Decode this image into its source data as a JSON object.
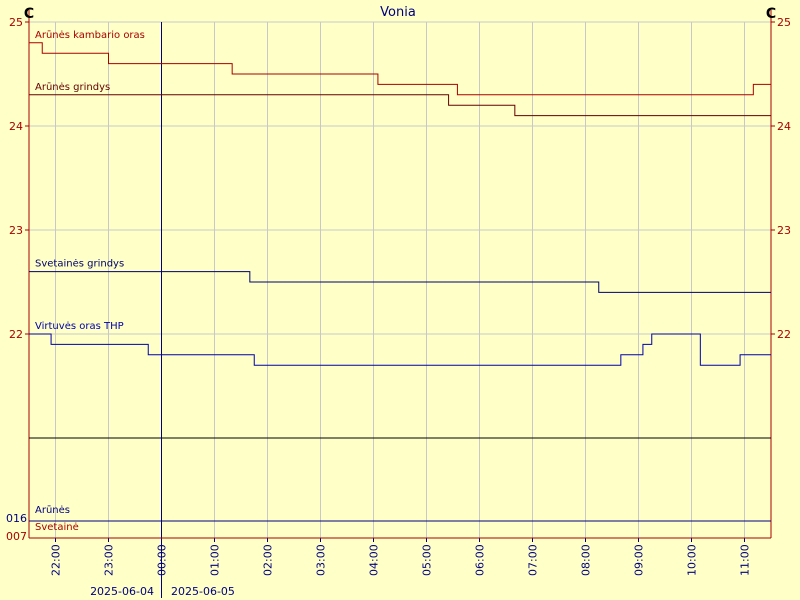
{
  "chart_data": {
    "type": "line",
    "title": "Vonia",
    "unit_left": "C",
    "unit_right": "C",
    "x_axis": {
      "tick_labels": [
        "22:00",
        "23:00",
        "00:00",
        "01:00",
        "02:00",
        "03:00",
        "04:00",
        "05:00",
        "06:00",
        "07:00",
        "08:00",
        "09:00",
        "10:00",
        "11:00"
      ],
      "xlim": [
        "2025-06-04 21:30",
        "2025-06-05 11:30"
      ],
      "day_change": "2025-06-05 00:00",
      "date_left": "2025-06-04",
      "date_right": "2025-06-05"
    },
    "y_axis": {
      "ylim": [
        21,
        25
      ],
      "ticks": [
        "25",
        "24",
        "23",
        "22"
      ]
    },
    "grid": true,
    "series": [
      {
        "name": "Arūnės kambario oras",
        "color": "#aa0000",
        "points": [
          [
            "21:30",
            24.8
          ],
          [
            "21:45",
            24.7
          ],
          [
            "23:00",
            24.6
          ],
          [
            "01:20",
            24.5
          ],
          [
            "04:05",
            24.4
          ],
          [
            "05:35",
            24.3
          ],
          [
            "11:10",
            24.4
          ]
        ]
      },
      {
        "name": "Arūnės grindys",
        "color": "#660000",
        "points": [
          [
            "21:30",
            24.3
          ],
          [
            "03:45",
            24.3
          ],
          [
            "05:25",
            24.2
          ],
          [
            "06:40",
            24.1
          ],
          [
            "11:30",
            24.1
          ]
        ]
      },
      {
        "name": "Svetainės grindys",
        "color": "#00006e",
        "points": [
          [
            "21:30",
            22.6
          ],
          [
            "01:15",
            22.6
          ],
          [
            "01:40",
            22.5
          ],
          [
            "08:15",
            22.4
          ],
          [
            "11:30",
            22.4
          ]
        ]
      },
      {
        "name": "Virtuvės oras THP",
        "color": "#0000aa",
        "points": [
          [
            "21:30",
            22.0
          ],
          [
            "21:55",
            21.9
          ],
          [
            "23:45",
            21.8
          ],
          [
            "01:45",
            21.7
          ],
          [
            "08:40",
            21.8
          ],
          [
            "09:05",
            21.9
          ],
          [
            "09:15",
            22.0
          ],
          [
            "10:00",
            22.0
          ],
          [
            "10:10",
            21.7
          ],
          [
            "10:50",
            21.7
          ],
          [
            "10:55",
            21.8
          ],
          [
            "11:20",
            21.8
          ]
        ]
      }
    ],
    "bottom_rows": [
      {
        "name": "Arūnės",
        "value": "016",
        "color": "#000080"
      },
      {
        "name": "Svetainė",
        "value": "007",
        "color": "#aa0000"
      }
    ]
  }
}
